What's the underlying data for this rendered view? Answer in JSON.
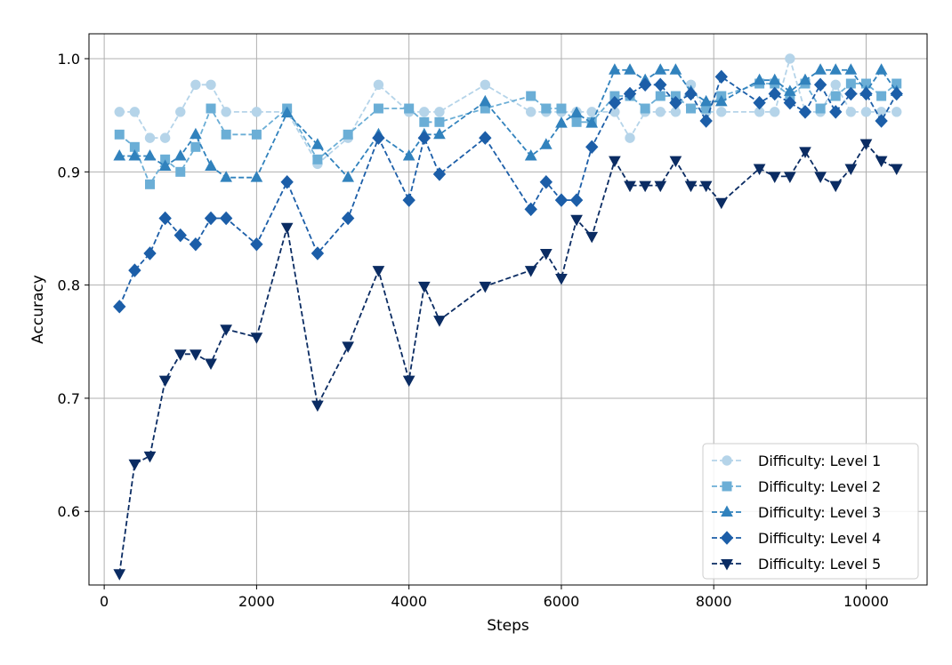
{
  "chart_data": {
    "type": "line",
    "title": "",
    "xlabel": "Steps",
    "ylabel": "Accuracy",
    "xlim": [
      -200,
      10800
    ],
    "ylim": [
      0.535,
      1.022
    ],
    "xticks": [
      0,
      2000,
      4000,
      6000,
      8000,
      10000
    ],
    "yticks": [
      0.6,
      0.7,
      0.8,
      0.9,
      1.0
    ],
    "grid": true,
    "legend_position": "bottom-right",
    "series": [
      {
        "name": "Difficulty: Level 1",
        "color": "#b5d4e9",
        "marker": "circle",
        "x": [
          200,
          400,
          600,
          800,
          1000,
          1200,
          1400,
          1600,
          2000,
          2400,
          2800,
          3200,
          3600,
          4000,
          4200,
          4400,
          5000,
          5600,
          5800,
          6000,
          6200,
          6400,
          6700,
          6900,
          7100,
          7300,
          7500,
          7700,
          7900,
          8100,
          8600,
          8800,
          9000,
          9200,
          9400,
          9600,
          9800,
          10000,
          10200,
          10400
        ],
        "y": [
          0.953,
          0.953,
          0.93,
          0.93,
          0.953,
          0.977,
          0.977,
          0.953,
          0.953,
          0.953,
          0.907,
          0.93,
          0.977,
          0.953,
          0.953,
          0.953,
          0.977,
          0.953,
          0.953,
          0.953,
          0.953,
          0.953,
          0.953,
          0.93,
          0.953,
          0.953,
          0.953,
          0.977,
          0.953,
          0.953,
          0.953,
          0.953,
          1.0,
          0.953,
          0.953,
          0.977,
          0.953,
          0.953,
          0.953,
          0.953
        ]
      },
      {
        "name": "Difficulty: Level 2",
        "color": "#6baed6",
        "marker": "square",
        "x": [
          200,
          400,
          600,
          800,
          1000,
          1200,
          1400,
          1600,
          2000,
          2400,
          2800,
          3200,
          3600,
          4000,
          4200,
          4400,
          5000,
          5600,
          5800,
          6000,
          6200,
          6400,
          6700,
          6900,
          7100,
          7300,
          7500,
          7700,
          7900,
          8100,
          8600,
          8800,
          9000,
          9200,
          9400,
          9600,
          9800,
          10000,
          10200,
          10400
        ],
        "y": [
          0.933,
          0.922,
          0.889,
          0.911,
          0.9,
          0.922,
          0.956,
          0.933,
          0.933,
          0.956,
          0.911,
          0.933,
          0.956,
          0.956,
          0.944,
          0.944,
          0.956,
          0.967,
          0.956,
          0.956,
          0.944,
          0.944,
          0.967,
          0.967,
          0.956,
          0.967,
          0.967,
          0.956,
          0.956,
          0.967,
          0.978,
          0.978,
          0.967,
          0.978,
          0.956,
          0.967,
          0.978,
          0.978,
          0.967,
          0.978
        ]
      },
      {
        "name": "Difficulty: Level 3",
        "color": "#3182bd",
        "marker": "triangle-up",
        "x": [
          200,
          400,
          600,
          800,
          1000,
          1200,
          1400,
          1600,
          2000,
          2400,
          2800,
          3200,
          3600,
          4000,
          4200,
          4400,
          5000,
          5600,
          5800,
          6000,
          6200,
          6400,
          6700,
          6900,
          7100,
          7300,
          7500,
          7700,
          7900,
          8100,
          8600,
          8800,
          9000,
          9200,
          9400,
          9600,
          9800,
          10000,
          10200,
          10400
        ],
        "y": [
          0.914,
          0.914,
          0.914,
          0.905,
          0.914,
          0.933,
          0.905,
          0.895,
          0.895,
          0.952,
          0.924,
          0.895,
          0.933,
          0.914,
          0.933,
          0.933,
          0.962,
          0.914,
          0.924,
          0.943,
          0.952,
          0.943,
          0.99,
          0.99,
          0.981,
          0.99,
          0.99,
          0.971,
          0.962,
          0.962,
          0.981,
          0.981,
          0.971,
          0.981,
          0.99,
          0.99,
          0.99,
          0.971,
          0.99,
          0.971
        ]
      },
      {
        "name": "Difficulty: Level 4",
        "color": "#1c5ea8",
        "marker": "diamond",
        "x": [
          200,
          400,
          600,
          800,
          1000,
          1200,
          1400,
          1600,
          2000,
          2400,
          2800,
          3200,
          3600,
          4000,
          4200,
          4400,
          5000,
          5600,
          5800,
          6000,
          6200,
          6400,
          6700,
          6900,
          7100,
          7300,
          7500,
          7700,
          7900,
          8100,
          8600,
          8800,
          9000,
          9200,
          9400,
          9600,
          9800,
          10000,
          10200,
          10400
        ],
        "y": [
          0.781,
          0.813,
          0.828,
          0.859,
          0.844,
          0.836,
          0.859,
          0.859,
          0.836,
          0.891,
          0.828,
          0.859,
          0.93,
          0.875,
          0.93,
          0.898,
          0.93,
          0.867,
          0.891,
          0.875,
          0.875,
          0.922,
          0.961,
          0.969,
          0.977,
          0.977,
          0.961,
          0.969,
          0.945,
          0.984,
          0.961,
          0.969,
          0.961,
          0.953,
          0.977,
          0.953,
          0.969,
          0.969,
          0.945,
          0.969
        ]
      },
      {
        "name": "Difficulty: Level 5",
        "color": "#0b2c63",
        "marker": "triangle-down",
        "x": [
          200,
          400,
          600,
          800,
          1000,
          1200,
          1400,
          1600,
          2000,
          2400,
          2800,
          3200,
          3600,
          4000,
          4200,
          4400,
          5000,
          5600,
          5800,
          6000,
          6200,
          6400,
          6700,
          6900,
          7100,
          7300,
          7500,
          7700,
          7900,
          8100,
          8600,
          8800,
          9000,
          9200,
          9400,
          9600,
          9800,
          10000,
          10200,
          10400
        ],
        "y": [
          0.545,
          0.642,
          0.649,
          0.716,
          0.739,
          0.739,
          0.731,
          0.761,
          0.754,
          0.851,
          0.694,
          0.746,
          0.813,
          0.716,
          0.799,
          0.769,
          0.799,
          0.813,
          0.828,
          0.806,
          0.858,
          0.843,
          0.91,
          0.888,
          0.888,
          0.888,
          0.91,
          0.888,
          0.888,
          0.873,
          0.903,
          0.896,
          0.896,
          0.918,
          0.896,
          0.888,
          0.903,
          0.925,
          0.91,
          0.903
        ]
      }
    ]
  }
}
